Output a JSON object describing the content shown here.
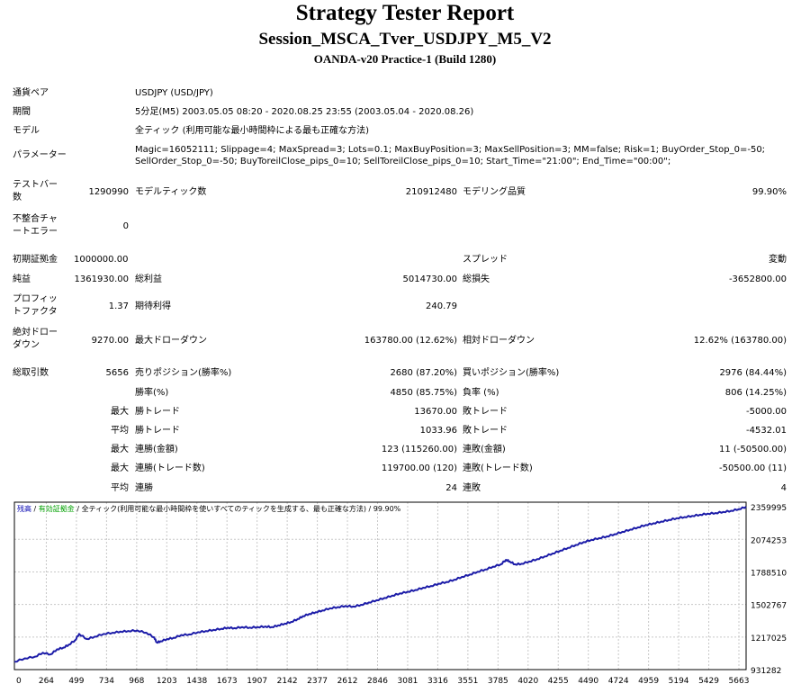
{
  "header": {
    "title": "Strategy Tester Report",
    "subtitle": "Session_MSCA_Tver_USDJPY_M5_V2",
    "broker": "OANDA-v20 Practice-1 (Build 1280)"
  },
  "info": {
    "pair_label": "通貨ペア",
    "pair_value": "USDJPY (USD/JPY)",
    "period_label": "期間",
    "period_value": "5分足(M5) 2003.05.05 08:20 - 2020.08.25 23:55 (2003.05.04 - 2020.08.26)",
    "model_label": "モデル",
    "model_value": "全ティック (利用可能な最小時間枠による最も正確な方法)",
    "params_label": "パラメーター",
    "params_line1": "Magic=16052111; Slippage=4; MaxSpread=3; Lots=0.1; MaxBuyPosition=3; MaxSellPosition=3; MM=false; Risk=1; BuyOrder_Stop_0=-50;",
    "params_line2": "SellOrder_Stop_0=-50; BuyToreilClose_pips_0=10; SellToreilClose_pips_0=10; Start_Time=\"21:00\"; End_Time=\"00:00\";"
  },
  "stats": {
    "testbars_label_1": "テストバー",
    "testbars_label_2": "数",
    "testbars_value": "1290990",
    "modelticks_label": "モデルティック数",
    "modelticks_value": "210912480",
    "quality_label": "モデリング品質",
    "quality_value": "99.90%",
    "mismatch_label_1": "不整合チャ",
    "mismatch_label_2": "ートエラー",
    "mismatch_value": "0",
    "deposit_label": "初期証拠金",
    "deposit_value": "1000000.00",
    "spread_label": "スプレッド",
    "spread_value": "変動",
    "netprofit_label": "純益",
    "netprofit_value": "1361930.00",
    "grossprofit_label": "総利益",
    "grossprofit_value": "5014730.00",
    "grossloss_label": "総損失",
    "grossloss_value": "-3652800.00",
    "pf_label_1": "プロフィッ",
    "pf_label_2": "トファクタ",
    "pf_value": "1.37",
    "expected_label": "期待利得",
    "expected_value": "240.79",
    "absdd_label_1": "絶対ドロー",
    "absdd_label_2": "ダウン",
    "absdd_value": "9270.00",
    "maxdd_label": "最大ドローダウン",
    "maxdd_value": "163780.00 (12.62%)",
    "reldd_label": "相対ドローダウン",
    "reldd_value": "12.62% (163780.00)",
    "trades_label": "総取引数",
    "trades_value": "5656",
    "short_label": "売りポジション(勝率%)",
    "short_value": "2680 (87.20%)",
    "long_label": "買いポジション(勝率%)",
    "long_value": "2976 (84.44%)",
    "winrate_label": "勝率(%)",
    "winrate_value": "4850 (85.75%)",
    "lossrate_label": "負率 (%)",
    "lossrate_value": "806 (14.25%)",
    "max_label_1": "最大",
    "maxwin_label": "勝トレード",
    "maxwin_value": "13670.00",
    "maxloss_label": "敗トレード",
    "maxloss_value": "-5000.00",
    "avg_label_1": "平均",
    "avgwin_label": "勝トレード",
    "avgwin_value": "1033.96",
    "avgloss_label": "敗トレード",
    "avgloss_value": "-4532.01",
    "max_label_2": "最大",
    "consecwin_amt_label": "連勝(金額)",
    "consecwin_amt_value": "123 (115260.00)",
    "consecloss_amt_label": "連敗(金額)",
    "consecloss_amt_value": "11 (-50500.00)",
    "max_label_3": "最大",
    "consecwin_cnt_label": "連勝(トレード数)",
    "consecwin_cnt_value": "119700.00 (120)",
    "consecloss_cnt_label": "連敗(トレード数)",
    "consecloss_cnt_value": "-50500.00 (11)",
    "avg_label_2": "平均",
    "avgconsecwin_label": "連勝",
    "avgconsecwin_value": "24",
    "avgconsecloss_label": "連敗",
    "avgconsecloss_value": "4"
  },
  "chart_data": {
    "type": "line",
    "legend": {
      "balance": "残高",
      "sep1": " / ",
      "equity": "有効証拠金",
      "sep2": " / ",
      "model": "全ティック(利用可能な最小時間枠を使いすべてのティックを生成する、最も正確な方法)",
      "sep3": " / ",
      "quality": "99.90%"
    },
    "colors": {
      "balance": "#0000b0",
      "equity": "#00a000",
      "line": "#1c1ca8",
      "grid": "#c8c8c8"
    },
    "grid": true,
    "xlim": [
      0,
      5656
    ],
    "ylim": [
      931282,
      2400000
    ],
    "x_ticks": [
      "0",
      "264",
      "499",
      "734",
      "968",
      "1203",
      "1438",
      "1673",
      "1907",
      "2142",
      "2377",
      "2612",
      "2846",
      "3081",
      "3316",
      "3551",
      "3785",
      "4020",
      "4255",
      "4490",
      "4724",
      "4959",
      "5194",
      "5429",
      "5663"
    ],
    "y_ticks": [
      "2359995",
      "2074253",
      "1788510",
      "1502767",
      "1217025",
      "931282"
    ],
    "y_tick_values": [
      2359995,
      2074253,
      1788510,
      1502767,
      1217025,
      931282
    ],
    "balance_x": [
      0,
      80,
      160,
      220,
      280,
      330,
      380,
      420,
      470,
      500,
      560,
      620,
      690,
      760,
      820,
      880,
      950,
      1020,
      1080,
      1100,
      1130,
      1180,
      1230,
      1290,
      1350,
      1420,
      1480,
      1540,
      1600,
      1650,
      1700,
      1760,
      1820,
      1880,
      1940,
      1990,
      2040,
      2090,
      2140,
      2190,
      2230,
      2280,
      2330,
      2380,
      2440,
      2500,
      2560,
      2620,
      2680,
      2740,
      2800,
      2860,
      2920,
      2980,
      3040,
      3100,
      3160,
      3220,
      3280,
      3340,
      3400,
      3460,
      3520,
      3580,
      3640,
      3700,
      3760,
      3800,
      3830,
      3870,
      3920,
      3980,
      4040,
      4100,
      4160,
      4220,
      4280,
      4340,
      4400,
      4460,
      4520,
      4580,
      4640,
      4700,
      4760,
      4820,
      4880,
      4940,
      5000,
      5060,
      5120,
      5180,
      5240,
      5300,
      5360,
      5420,
      5480,
      5540,
      5600,
      5656
    ],
    "balance_y": [
      1000000,
      1030000,
      1045000,
      1080000,
      1065000,
      1110000,
      1125000,
      1150000,
      1190000,
      1245000,
      1200000,
      1220000,
      1245000,
      1255000,
      1265000,
      1270000,
      1275000,
      1255000,
      1215000,
      1170000,
      1180000,
      1200000,
      1210000,
      1235000,
      1240000,
      1260000,
      1270000,
      1280000,
      1290000,
      1300000,
      1295000,
      1305000,
      1300000,
      1305000,
      1310000,
      1305000,
      1320000,
      1335000,
      1350000,
      1375000,
      1400000,
      1420000,
      1435000,
      1450000,
      1470000,
      1480000,
      1490000,
      1485000,
      1500000,
      1520000,
      1540000,
      1560000,
      1580000,
      1600000,
      1615000,
      1630000,
      1650000,
      1665000,
      1685000,
      1700000,
      1720000,
      1745000,
      1765000,
      1790000,
      1810000,
      1835000,
      1855000,
      1895000,
      1880000,
      1855000,
      1860000,
      1880000,
      1900000,
      1925000,
      1950000,
      1975000,
      2000000,
      2025000,
      2050000,
      2070000,
      2085000,
      2100000,
      2120000,
      2140000,
      2160000,
      2180000,
      2200000,
      2215000,
      2230000,
      2245000,
      2260000,
      2270000,
      2280000,
      2290000,
      2300000,
      2305000,
      2315000,
      2325000,
      2340000,
      2360000
    ]
  }
}
